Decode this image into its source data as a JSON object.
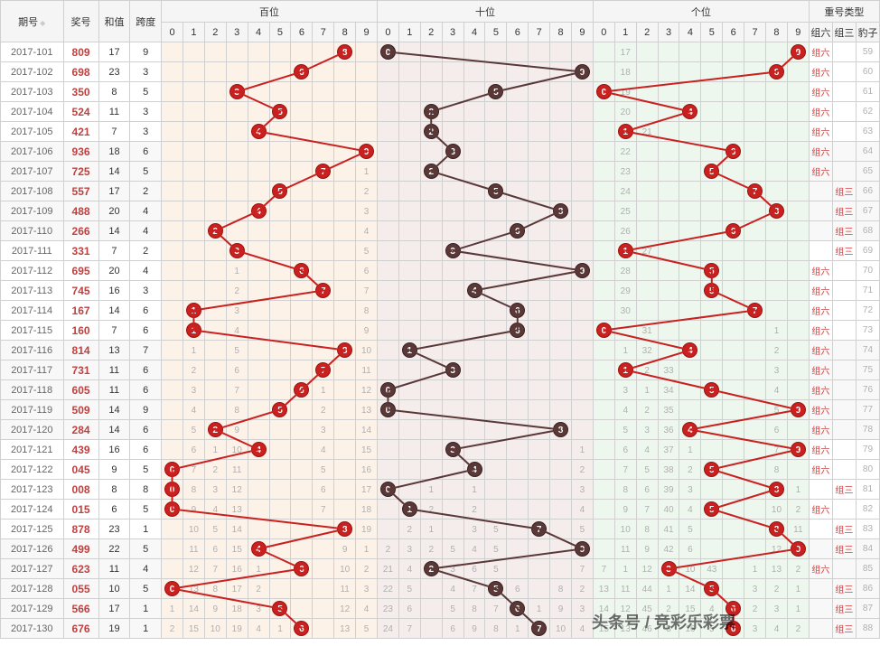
{
  "headers": {
    "period": "期号",
    "award": "奖号",
    "sum": "和值",
    "span": "跨度",
    "hundreds": "百位",
    "tens": "十位",
    "units": "个位",
    "typeGroup": "重号类型",
    "zu6": "组六",
    "zu3": "组三",
    "baozi": "豹子"
  },
  "digitLabels": [
    "0",
    "1",
    "2",
    "3",
    "4",
    "5",
    "6",
    "7",
    "8",
    "9"
  ],
  "colors": {
    "ballRed": "#c92020",
    "ballDark": "#5a3838",
    "line": "#c92020",
    "bgHundreds": "#fdf2e8",
    "bgTens": "#f5ecec",
    "bgUnits": "#eef7ee",
    "border": "#d0d0d0",
    "miss": "#b0b0b0",
    "award": "#c04040",
    "typeRed": "#d04040"
  },
  "rows": [
    {
      "p": "2017-101",
      "n": "809",
      "s": 17,
      "k": 9,
      "h": 8,
      "t": 0,
      "u": 9,
      "zu6": true,
      "zu3": false,
      "zu6n": 59,
      "hm": {},
      "tm": {},
      "um": {
        "1": "17"
      }
    },
    {
      "p": "2017-102",
      "n": "698",
      "s": 23,
      "k": 3,
      "h": 6,
      "t": 9,
      "u": 8,
      "zu6": true,
      "zu3": false,
      "zu6n": 60,
      "hm": {},
      "tm": {},
      "um": {
        "1": "18"
      }
    },
    {
      "p": "2017-103",
      "n": "350",
      "s": 8,
      "k": 5,
      "h": 3,
      "t": 5,
      "u": 0,
      "zu6": true,
      "zu3": false,
      "zu6n": 61,
      "hm": {},
      "tm": {},
      "um": {
        "1": "19"
      }
    },
    {
      "p": "2017-104",
      "n": "524",
      "s": 11,
      "k": 3,
      "h": 5,
      "t": 2,
      "u": 4,
      "zu6": true,
      "zu3": false,
      "zu6n": 62,
      "hm": {},
      "tm": {},
      "um": {
        "1": "20"
      }
    },
    {
      "p": "2017-105",
      "n": "421",
      "s": 7,
      "k": 3,
      "h": 4,
      "t": 2,
      "u": 1,
      "zu6": true,
      "zu3": false,
      "zu6n": 63,
      "hm": {},
      "tm": {},
      "um": {
        "2": "21"
      }
    },
    {
      "p": "2017-106",
      "n": "936",
      "s": 18,
      "k": 6,
      "h": 9,
      "t": 3,
      "u": 6,
      "zu6": true,
      "zu3": false,
      "zu6n": 64,
      "hm": {},
      "tm": {},
      "um": {
        "1": "22"
      }
    },
    {
      "p": "2017-107",
      "n": "725",
      "s": 14,
      "k": 5,
      "h": 7,
      "t": 2,
      "u": 5,
      "zu6": true,
      "zu3": false,
      "zu6n": 65,
      "hm": {
        "9": "1"
      },
      "tm": {},
      "um": {
        "1": "23"
      }
    },
    {
      "p": "2017-108",
      "n": "557",
      "s": 17,
      "k": 2,
      "h": 5,
      "t": 5,
      "u": 7,
      "zu6": false,
      "zu3": true,
      "zu3n": 66,
      "hm": {
        "9": "2"
      },
      "tm": {},
      "um": {
        "1": "24"
      }
    },
    {
      "p": "2017-109",
      "n": "488",
      "s": 20,
      "k": 4,
      "h": 4,
      "t": 8,
      "u": 8,
      "zu6": false,
      "zu3": true,
      "zu3n": 67,
      "hm": {
        "9": "3"
      },
      "tm": {},
      "um": {
        "1": "25"
      }
    },
    {
      "p": "2017-110",
      "n": "266",
      "s": 14,
      "k": 4,
      "h": 2,
      "t": 6,
      "u": 6,
      "zu6": false,
      "zu3": true,
      "zu3n": 68,
      "hm": {
        "9": "4"
      },
      "tm": {},
      "um": {
        "1": "26"
      }
    },
    {
      "p": "2017-111",
      "n": "331",
      "s": 7,
      "k": 2,
      "h": 3,
      "t": 3,
      "u": 1,
      "zu6": false,
      "zu3": true,
      "zu3n": 69,
      "hm": {
        "9": "5"
      },
      "tm": {},
      "um": {
        "2": "27"
      }
    },
    {
      "p": "2017-112",
      "n": "695",
      "s": 20,
      "k": 4,
      "h": 6,
      "t": 9,
      "u": 5,
      "zu6": true,
      "zu3": false,
      "zu6n": 70,
      "hm": {
        "3": "1",
        "9": "6"
      },
      "tm": {},
      "um": {
        "1": "28"
      }
    },
    {
      "p": "2017-113",
      "n": "745",
      "s": 16,
      "k": 3,
      "h": 7,
      "t": 4,
      "u": 5,
      "zu6": true,
      "zu3": false,
      "zu6n": 71,
      "hm": {
        "3": "2",
        "9": "7"
      },
      "tm": {},
      "um": {
        "1": "29"
      }
    },
    {
      "p": "2017-114",
      "n": "167",
      "s": 14,
      "k": 6,
      "h": 1,
      "t": 6,
      "u": 7,
      "zu6": true,
      "zu3": false,
      "zu6n": 72,
      "hm": {
        "3": "3",
        "9": "8"
      },
      "tm": {},
      "um": {
        "1": "30"
      }
    },
    {
      "p": "2017-115",
      "n": "160",
      "s": 7,
      "k": 6,
      "h": 1,
      "t": 6,
      "u": 0,
      "zu6": true,
      "zu3": false,
      "zu6n": 73,
      "hm": {
        "3": "4",
        "9": "9"
      },
      "tm": {},
      "um": {
        "2": "31",
        "8": "1"
      }
    },
    {
      "p": "2017-116",
      "n": "814",
      "s": 13,
      "k": 7,
      "h": 8,
      "t": 1,
      "u": 4,
      "zu6": true,
      "zu3": false,
      "zu6n": 74,
      "hm": {
        "1": "1",
        "3": "5",
        "9": "10"
      },
      "tm": {},
      "um": {
        "1": "1",
        "2": "32",
        "8": "2"
      }
    },
    {
      "p": "2017-117",
      "n": "731",
      "s": 11,
      "k": 6,
      "h": 7,
      "t": 3,
      "u": 1,
      "zu6": true,
      "zu3": false,
      "zu6n": 75,
      "hm": {
        "1": "2",
        "3": "6",
        "9": "11"
      },
      "tm": {},
      "um": {
        "2": "2",
        "3": "33",
        "8": "3"
      }
    },
    {
      "p": "2017-118",
      "n": "605",
      "s": 11,
      "k": 6,
      "h": 6,
      "t": 0,
      "u": 5,
      "zu6": true,
      "zu3": false,
      "zu6n": 76,
      "hm": {
        "1": "3",
        "3": "7",
        "7": "1",
        "9": "12"
      },
      "tm": {},
      "um": {
        "1": "3",
        "2": "1",
        "3": "34",
        "8": "4"
      }
    },
    {
      "p": "2017-119",
      "n": "509",
      "s": 14,
      "k": 9,
      "h": 5,
      "t": 0,
      "u": 9,
      "zu6": true,
      "zu3": false,
      "zu6n": 77,
      "hm": {
        "1": "4",
        "3": "8",
        "7": "2",
        "9": "13"
      },
      "tm": {},
      "um": {
        "1": "4",
        "2": "2",
        "3": "35",
        "8": "5"
      }
    },
    {
      "p": "2017-120",
      "n": "284",
      "s": 14,
      "k": 6,
      "h": 2,
      "t": 8,
      "u": 4,
      "zu6": true,
      "zu3": false,
      "zu6n": 78,
      "hm": {
        "1": "5",
        "3": "9",
        "7": "3",
        "9": "14"
      },
      "tm": {},
      "um": {
        "1": "5",
        "2": "3",
        "3": "36",
        "8": "6"
      }
    },
    {
      "p": "2017-121",
      "n": "439",
      "s": 16,
      "k": 6,
      "h": 4,
      "t": 3,
      "u": 9,
      "zu6": true,
      "zu3": false,
      "zu6n": 79,
      "hm": {
        "1": "6",
        "2": "1",
        "3": "10",
        "7": "4",
        "9": "15"
      },
      "tm": {
        "9": "1"
      },
      "um": {
        "1": "6",
        "2": "4",
        "3": "37",
        "4": "1",
        "8": "7"
      }
    },
    {
      "p": "2017-122",
      "n": "045",
      "s": 9,
      "k": 5,
      "h": 0,
      "t": 4,
      "u": 5,
      "zu6": true,
      "zu3": false,
      "zu6n": 80,
      "hm": {
        "1": "7",
        "2": "2",
        "3": "11",
        "7": "5",
        "9": "16"
      },
      "tm": {
        "9": "2"
      },
      "um": {
        "1": "7",
        "2": "5",
        "3": "38",
        "4": "2",
        "8": "8"
      }
    },
    {
      "p": "2017-123",
      "n": "008",
      "s": 8,
      "k": 8,
      "h": 0,
      "t": 0,
      "u": 8,
      "zu6": false,
      "zu3": true,
      "zu3n": 81,
      "hm": {
        "1": "8",
        "2": "3",
        "3": "12",
        "7": "6",
        "9": "17"
      },
      "tm": {
        "2": "1",
        "4": "1",
        "9": "3"
      },
      "um": {
        "1": "8",
        "2": "6",
        "3": "39",
        "4": "3",
        "9": "1"
      }
    },
    {
      "p": "2017-124",
      "n": "015",
      "s": 6,
      "k": 5,
      "h": 0,
      "t": 1,
      "u": 5,
      "zu6": true,
      "zu3": false,
      "zu6n": 82,
      "hm": {
        "1": "9",
        "2": "4",
        "3": "13",
        "7": "7",
        "9": "18"
      },
      "tm": {
        "2": "2",
        "4": "2",
        "9": "4"
      },
      "um": {
        "1": "9",
        "2": "7",
        "3": "40",
        "4": "4",
        "8": "10",
        "9": "2"
      }
    },
    {
      "p": "2017-125",
      "n": "878",
      "s": 23,
      "k": 1,
      "h": 8,
      "t": 7,
      "u": 8,
      "zu6": false,
      "zu3": true,
      "zu3n": 83,
      "hm": {
        "1": "10",
        "2": "5",
        "3": "14",
        "9": "19"
      },
      "tm": {
        "1": "2",
        "2": "1",
        "4": "3",
        "5": "5",
        "9": "5"
      },
      "um": {
        "1": "10",
        "2": "8",
        "3": "41",
        "4": "5",
        "9": "11"
      }
    },
    {
      "p": "2017-126",
      "n": "499",
      "s": 22,
      "k": 5,
      "h": 4,
      "t": 9,
      "u": 9,
      "zu6": false,
      "zu3": true,
      "zu3n": 84,
      "hm": {
        "1": "11",
        "2": "6",
        "3": "15",
        "8": "9",
        "9": "1"
      },
      "tm": {
        "0": "2",
        "1": "3",
        "2": "2",
        "3": "5",
        "4": "4",
        "5": "5",
        "9": "6"
      },
      "um": {
        "1": "11",
        "2": "9",
        "3": "42",
        "4": "6",
        "8": "12",
        "9": "1"
      }
    },
    {
      "p": "2017-127",
      "n": "623",
      "s": 11,
      "k": 4,
      "h": 6,
      "t": 2,
      "u": 3,
      "zu6": true,
      "zu3": false,
      "zu6n": 85,
      "hm": {
        "1": "12",
        "2": "7",
        "3": "16",
        "4": "1",
        "8": "10",
        "9": "2"
      },
      "tm": {
        "0": "21",
        "1": "4",
        "3": "3",
        "4": "6",
        "5": "5",
        "9": "7"
      },
      "um": {
        "0": "7",
        "1": "1",
        "2": "12",
        "4": "10",
        "5": "43",
        "8": "13",
        "9": "2",
        "7": "1"
      }
    },
    {
      "p": "2017-128",
      "n": "055",
      "s": 10,
      "k": 5,
      "h": 0,
      "t": 5,
      "u": 5,
      "zu6": false,
      "zu3": true,
      "zu3n": 86,
      "hm": {
        "1": "13",
        "2": "8",
        "3": "17",
        "4": "2",
        "8": "11",
        "9": "3"
      },
      "tm": {
        "0": "22",
        "1": "5",
        "3": "4",
        "4": "7",
        "6": "6",
        "8": "8",
        "9": "2"
      },
      "um": {
        "0": "13",
        "1": "11",
        "2": "44",
        "3": "1",
        "4": "14",
        "7": "3",
        "8": "2",
        "9": "1"
      }
    },
    {
      "p": "2017-129",
      "n": "566",
      "s": 17,
      "k": 1,
      "h": 5,
      "t": 6,
      "u": 6,
      "zu6": false,
      "zu3": true,
      "zu3n": 87,
      "hm": {
        "0": "1",
        "1": "14",
        "2": "9",
        "3": "18",
        "4": "3",
        "8": "12",
        "9": "4"
      },
      "tm": {
        "0": "23",
        "1": "6",
        "3": "5",
        "4": "8",
        "5": "7",
        "7": "1",
        "8": "9",
        "9": "3"
      },
      "um": {
        "0": "14",
        "1": "12",
        "2": "45",
        "3": "2",
        "4": "15",
        "5": "4",
        "7": "2",
        "8": "3",
        "9": "1"
      }
    },
    {
      "p": "2017-130",
      "n": "676",
      "s": 19,
      "k": 1,
      "h": 6,
      "t": 7,
      "u": 6,
      "zu6": false,
      "zu3": true,
      "zu3n": 88,
      "hm": {
        "0": "2",
        "1": "15",
        "2": "10",
        "3": "19",
        "4": "4",
        "5": "1",
        "8": "13",
        "9": "5"
      },
      "tm": {
        "0": "24",
        "1": "7",
        "3": "6",
        "4": "9",
        "5": "8",
        "6": "1",
        "8": "10",
        "9": "4"
      },
      "um": {
        "0": "15",
        "1": "13",
        "2": "46",
        "3": "3",
        "4": "16",
        "5": "5",
        "7": "3",
        "8": "4",
        "9": "2"
      }
    }
  ],
  "watermark": "头条号 / 竞彩乐彩票"
}
